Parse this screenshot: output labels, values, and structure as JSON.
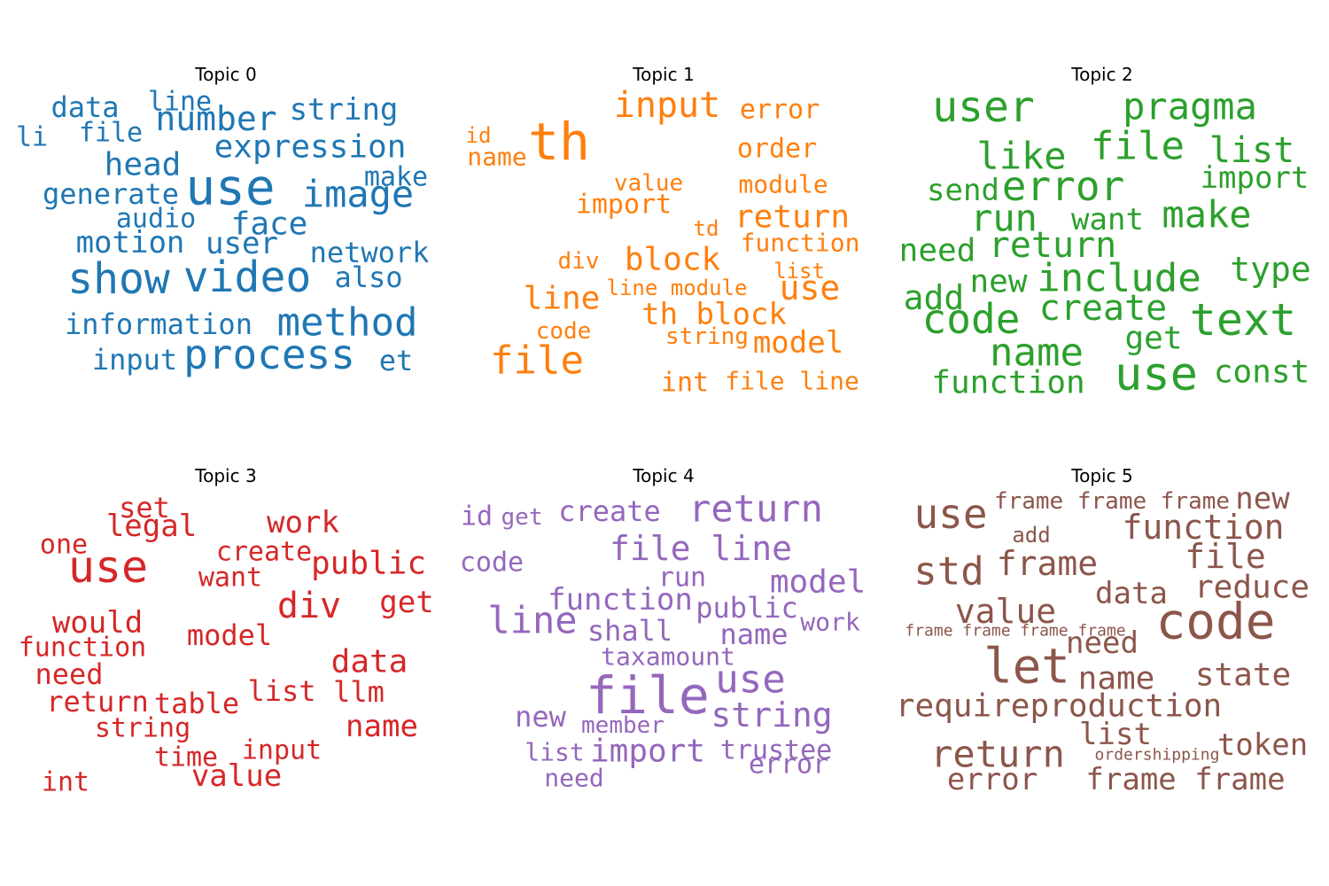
{
  "chart_data": [
    {
      "type": "wordcloud",
      "title": "Topic 0",
      "color": "#1f77b4",
      "words": [
        "line",
        "data",
        "number",
        "string",
        "li",
        "file",
        "expression",
        "head",
        "make",
        "generate",
        "use",
        "image",
        "audio",
        "face",
        "motion",
        "user",
        "network",
        "show",
        "video",
        "also",
        "information",
        "method",
        "input",
        "process",
        "et"
      ],
      "weights": [
        30,
        32,
        38,
        34,
        30,
        30,
        36,
        36,
        30,
        32,
        56,
        42,
        30,
        36,
        34,
        34,
        32,
        48,
        48,
        32,
        32,
        44,
        32,
        46,
        32
      ]
    },
    {
      "type": "wordcloud",
      "title": "Topic 1",
      "color": "#ff7f0e",
      "words": [
        "input",
        "error",
        "id",
        "th",
        "name",
        "order",
        "value",
        "module",
        "import",
        "return",
        "td",
        "function",
        "div",
        "block",
        "list",
        "line module",
        "use",
        "line",
        "th block",
        "code",
        "string",
        "model",
        "file",
        "int",
        "file line"
      ],
      "weights": [
        40,
        30,
        24,
        58,
        28,
        30,
        26,
        28,
        30,
        36,
        24,
        28,
        26,
        36,
        24,
        24,
        38,
        36,
        34,
        26,
        26,
        34,
        44,
        30,
        28
      ]
    },
    {
      "type": "wordcloud",
      "title": "Topic 2",
      "color": "#2ca02c",
      "words": [
        "user",
        "pragma",
        "file",
        "list",
        "like",
        "import",
        "error",
        "send",
        "make",
        "run",
        "want",
        "need",
        "return",
        "type",
        "new",
        "include",
        "add",
        "create",
        "code",
        "text",
        "get",
        "name",
        "use",
        "const",
        "function"
      ],
      "weights": [
        48,
        42,
        44,
        40,
        42,
        34,
        46,
        34,
        42,
        42,
        34,
        36,
        40,
        38,
        36,
        44,
        38,
        40,
        46,
        50,
        36,
        44,
        52,
        36,
        36
      ]
    },
    {
      "type": "wordcloud",
      "title": "Topic 3",
      "color": "#d62728",
      "words": [
        "set",
        "legal",
        "work",
        "one",
        "use",
        "create",
        "public",
        "want",
        "div",
        "get",
        "would",
        "model",
        "function",
        "data",
        "need",
        "llm",
        "list",
        "return",
        "table",
        "name",
        "string",
        "input",
        "time",
        "value",
        "int"
      ],
      "weights": [
        32,
        34,
        34,
        30,
        50,
        30,
        36,
        30,
        40,
        34,
        34,
        32,
        30,
        36,
        32,
        32,
        32,
        32,
        32,
        34,
        30,
        30,
        30,
        34,
        30
      ]
    },
    {
      "type": "wordcloud",
      "title": "Topic 4",
      "color": "#9467bd",
      "words": [
        "id",
        "get",
        "create",
        "return",
        "file line",
        "code",
        "run",
        "model",
        "function",
        "public",
        "work",
        "line",
        "shall",
        "name",
        "taxamount",
        "use",
        "file",
        "string",
        "new",
        "member",
        "trustee",
        "list",
        "import",
        "error",
        "need"
      ],
      "weights": [
        30,
        26,
        32,
        42,
        38,
        30,
        30,
        36,
        34,
        32,
        28,
        42,
        32,
        32,
        28,
        44,
        58,
        38,
        32,
        26,
        30,
        28,
        36,
        30,
        28
      ]
    },
    {
      "type": "wordcloud",
      "title": "Topic 5",
      "color": "#8c564b",
      "words": [
        "frame frame frame",
        "new",
        "use",
        "function",
        "add",
        "file",
        "std",
        "frame",
        "reduce",
        "data",
        "code",
        "value",
        "frame frame frame frame",
        "need",
        "let",
        "name",
        "state",
        "requireproduction",
        "list",
        "token",
        "return",
        "ordershipping",
        "error",
        "frame frame"
      ],
      "weights": [
        26,
        34,
        46,
        38,
        24,
        38,
        44,
        38,
        36,
        34,
        56,
        38,
        18,
        34,
        54,
        36,
        36,
        36,
        34,
        34,
        42,
        18,
        34,
        34
      ]
    }
  ]
}
